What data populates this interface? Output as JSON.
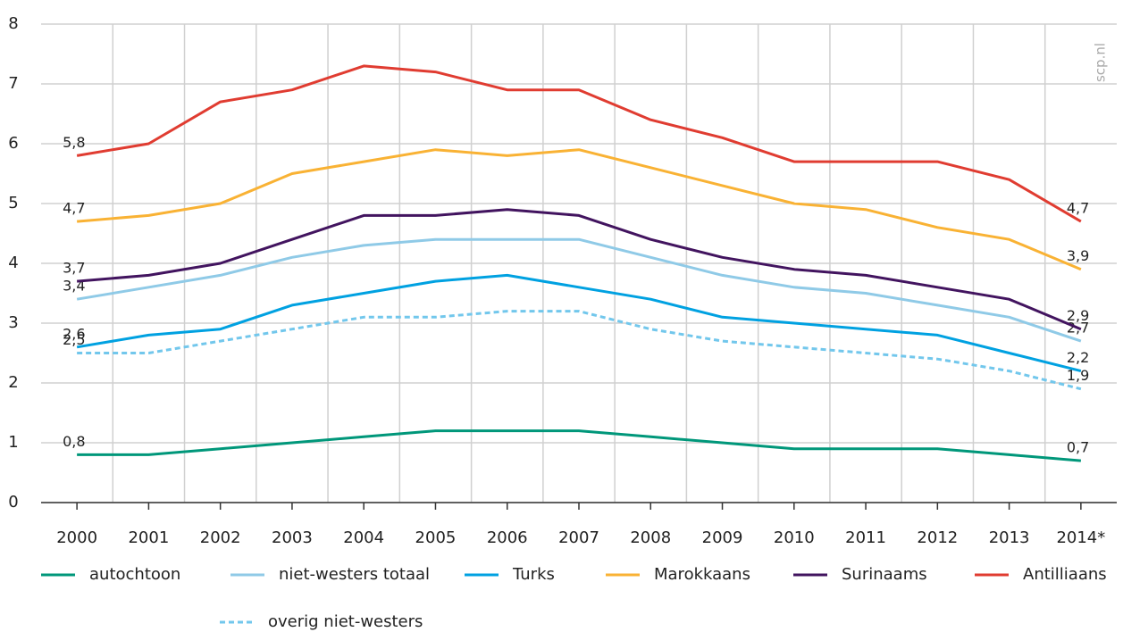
{
  "chart_data": {
    "type": "line",
    "source": "scp.nl",
    "categories": [
      "2000",
      "2001",
      "2002",
      "2003",
      "2004",
      "2005",
      "2006",
      "2007",
      "2008",
      "2009",
      "2010",
      "2011",
      "2012",
      "2013",
      "2014*"
    ],
    "ylim": [
      0,
      8
    ],
    "yticks": [
      0,
      1,
      2,
      3,
      4,
      5,
      6,
      7,
      8
    ],
    "grid": true,
    "series": [
      {
        "name": "autochtoon",
        "color": "#00977a",
        "values": [
          0.8,
          0.8,
          0.9,
          1.0,
          1.1,
          1.2,
          1.2,
          1.2,
          1.1,
          1.0,
          0.9,
          0.9,
          0.9,
          0.8,
          0.7
        ],
        "value_labels": [
          "0,8",
          null,
          null,
          null,
          null,
          null,
          null,
          null,
          null,
          null,
          null,
          null,
          null,
          null,
          "0,7"
        ]
      },
      {
        "name": "niet-westers totaal",
        "color": "#8fcae7",
        "values": [
          3.4,
          3.6,
          3.8,
          4.1,
          4.3,
          4.4,
          4.4,
          4.4,
          4.1,
          3.8,
          3.6,
          3.5,
          3.3,
          3.1,
          2.7
        ],
        "value_labels": [
          "3,4",
          null,
          null,
          null,
          null,
          null,
          null,
          null,
          null,
          null,
          null,
          null,
          null,
          null,
          "2,7"
        ]
      },
      {
        "name": "Turks",
        "color": "#00a1e1",
        "values": [
          2.6,
          2.8,
          2.9,
          3.3,
          3.5,
          3.7,
          3.8,
          3.6,
          3.4,
          3.1,
          3.0,
          2.9,
          2.8,
          2.5,
          2.2
        ],
        "value_labels": [
          "2,6",
          null,
          null,
          null,
          null,
          null,
          null,
          null,
          null,
          null,
          null,
          null,
          null,
          null,
          "2,2"
        ]
      },
      {
        "name": "Marokkaans",
        "color": "#f9b234",
        "values": [
          4.7,
          4.8,
          5.0,
          5.5,
          5.7,
          5.9,
          5.8,
          5.9,
          5.6,
          5.3,
          5.0,
          4.9,
          4.6,
          4.4,
          3.9
        ],
        "value_labels": [
          "4,7",
          null,
          null,
          null,
          null,
          null,
          null,
          null,
          null,
          null,
          null,
          null,
          null,
          null,
          "3,9"
        ]
      },
      {
        "name": "Surinaams",
        "color": "#42145f",
        "values": [
          3.7,
          3.8,
          4.0,
          4.4,
          4.8,
          4.8,
          4.9,
          4.8,
          4.4,
          4.1,
          3.9,
          3.8,
          3.6,
          3.4,
          2.9
        ],
        "value_labels": [
          "3,7",
          null,
          null,
          null,
          null,
          null,
          null,
          null,
          null,
          null,
          null,
          null,
          null,
          null,
          "2,9"
        ]
      },
      {
        "name": "Antilliaans",
        "color": "#e03c31",
        "values": [
          5.8,
          6.0,
          6.7,
          6.9,
          7.3,
          7.2,
          6.9,
          6.9,
          6.4,
          6.1,
          5.7,
          5.7,
          5.7,
          5.4,
          4.7
        ],
        "value_labels": [
          "5,8",
          null,
          null,
          null,
          null,
          null,
          null,
          null,
          null,
          null,
          null,
          null,
          null,
          null,
          "4,7"
        ]
      },
      {
        "name": "overig niet-westers",
        "color": "#72c7ec",
        "dashed": true,
        "values": [
          2.5,
          2.5,
          2.7,
          2.9,
          3.1,
          3.1,
          3.2,
          3.2,
          2.9,
          2.7,
          2.6,
          2.5,
          2.4,
          2.2,
          1.9
        ],
        "value_labels": [
          "2,5",
          null,
          null,
          null,
          null,
          null,
          null,
          null,
          null,
          null,
          null,
          null,
          null,
          null,
          "1,9"
        ]
      }
    ]
  }
}
